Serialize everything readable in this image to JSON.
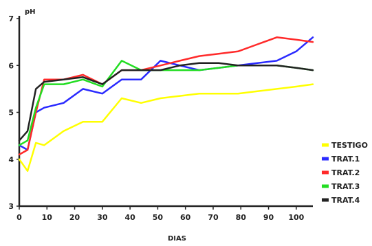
{
  "chart_data": {
    "type": "line",
    "ylabel": "pH",
    "xlabel": "DIAS",
    "xlim": [
      0,
      106
    ],
    "ylim": [
      3,
      7
    ],
    "x_ticks": [
      "0",
      "10",
      "20",
      "30",
      "40",
      "50",
      "60",
      "70",
      "80",
      "90",
      "100"
    ],
    "y_ticks": [
      "3",
      "4",
      "5",
      "6",
      "7"
    ],
    "grid": false,
    "legend_position": "right",
    "series": [
      {
        "name": "TESTIGO",
        "color": "#ffff00",
        "x": [
          0,
          3,
          6,
          9,
          16,
          23,
          30,
          37,
          44,
          51,
          58,
          65,
          72,
          79,
          86,
          93,
          100,
          106
        ],
        "y": [
          4.0,
          3.75,
          4.35,
          4.3,
          4.6,
          4.8,
          4.8,
          5.3,
          5.2,
          5.3,
          5.35,
          5.4,
          5.4,
          5.4,
          5.45,
          5.5,
          5.55,
          5.6
        ]
      },
      {
        "name": "TRAT.1",
        "color": "#2a2aff",
        "x": [
          0,
          3,
          6,
          9,
          16,
          23,
          30,
          37,
          44,
          51,
          58,
          65,
          72,
          79,
          86,
          93,
          100,
          106
        ],
        "y": [
          4.3,
          4.2,
          5.0,
          5.1,
          5.2,
          5.5,
          5.4,
          5.7,
          5.7,
          6.1,
          6.0,
          5.9,
          5.95,
          6.0,
          6.05,
          6.1,
          6.3,
          6.6
        ]
      },
      {
        "name": "TRAT.2",
        "color": "#ff2a2a",
        "x": [
          0,
          3,
          6,
          9,
          16,
          23,
          30,
          37,
          44,
          51,
          58,
          65,
          72,
          79,
          86,
          93,
          100,
          106
        ],
        "y": [
          4.1,
          4.2,
          5.0,
          5.7,
          5.7,
          5.8,
          5.6,
          5.9,
          5.9,
          6.0,
          6.1,
          6.2,
          6.25,
          6.3,
          6.45,
          6.6,
          6.55,
          6.5
        ]
      },
      {
        "name": "TRAT.3",
        "color": "#22dd22",
        "x": [
          0,
          3,
          6,
          9,
          16,
          23,
          30,
          37,
          44,
          51,
          58,
          65,
          72,
          79,
          86,
          93,
          100,
          106
        ],
        "y": [
          4.3,
          4.4,
          5.1,
          5.6,
          5.6,
          5.7,
          5.55,
          6.1,
          5.9,
          5.9,
          5.9,
          5.9,
          5.95,
          6.0,
          6.0,
          6.0,
          5.95,
          5.9
        ]
      },
      {
        "name": "TRAT.4",
        "color": "#222222",
        "x": [
          0,
          3,
          6,
          9,
          16,
          23,
          30,
          37,
          44,
          51,
          58,
          65,
          72,
          79,
          86,
          93,
          100,
          106
        ],
        "y": [
          4.4,
          4.6,
          5.5,
          5.65,
          5.7,
          5.75,
          5.6,
          5.9,
          5.9,
          5.9,
          6.0,
          6.05,
          6.05,
          6.0,
          6.0,
          6.0,
          5.95,
          5.9
        ]
      }
    ]
  }
}
